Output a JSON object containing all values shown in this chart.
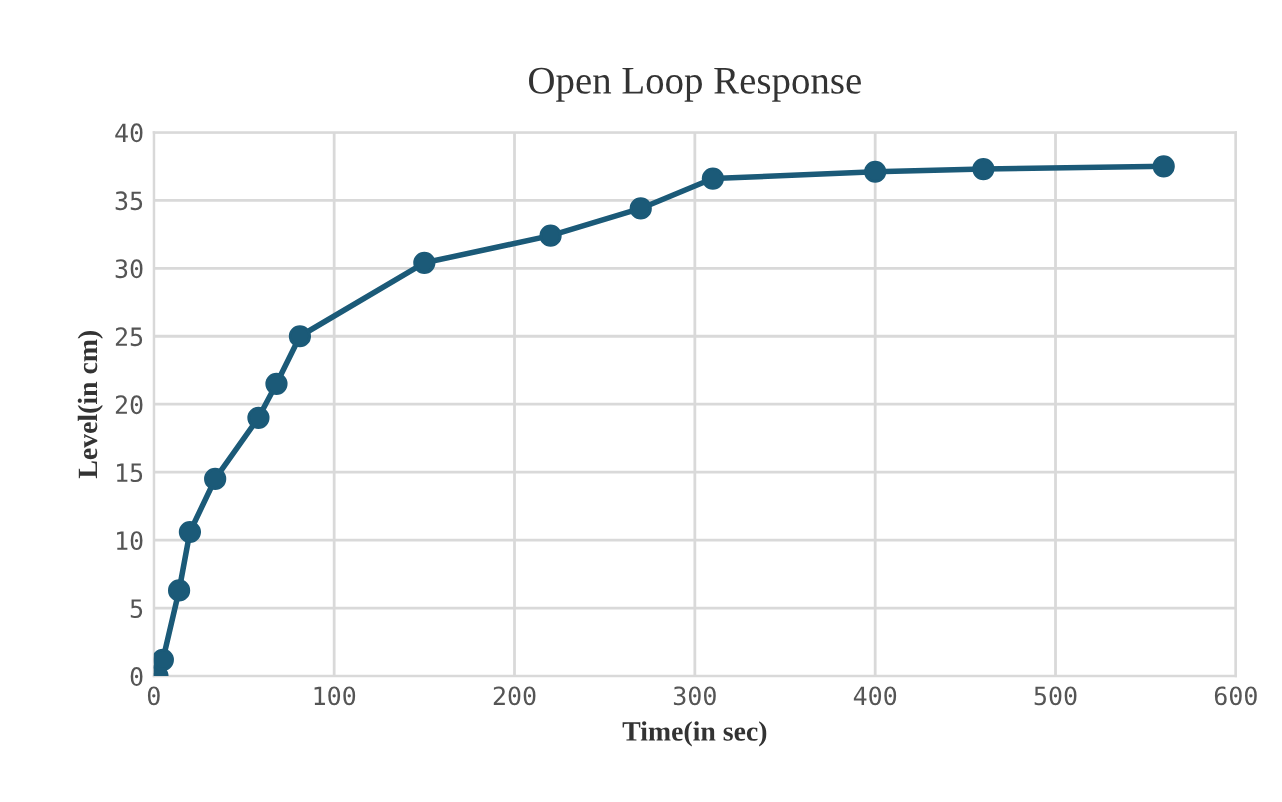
{
  "chart_data": {
    "type": "line",
    "title": "Open Loop Response",
    "xlabel": "Time(in sec)",
    "ylabel": "Level(in cm)",
    "x": [
      0,
      2,
      5,
      14,
      20,
      34,
      58,
      68,
      81,
      150,
      220,
      270,
      310,
      400,
      460,
      560
    ],
    "series": [
      {
        "color": "#1b5a78",
        "values": [
          0,
          0,
          1.2,
          6.3,
          10.6,
          14.5,
          19,
          21.5,
          25,
          30.4,
          32.4,
          34.4,
          36.6,
          37.1,
          37.3,
          37.5
        ]
      }
    ],
    "xlim": [
      0,
      600
    ],
    "ylim": [
      0,
      40
    ],
    "xticks": [
      0,
      100,
      200,
      300,
      400,
      500,
      600
    ],
    "yticks": [
      0,
      5,
      10,
      15,
      20,
      25,
      30,
      35,
      40
    ],
    "grid": true,
    "marker": "circle",
    "line_style": "solid"
  }
}
